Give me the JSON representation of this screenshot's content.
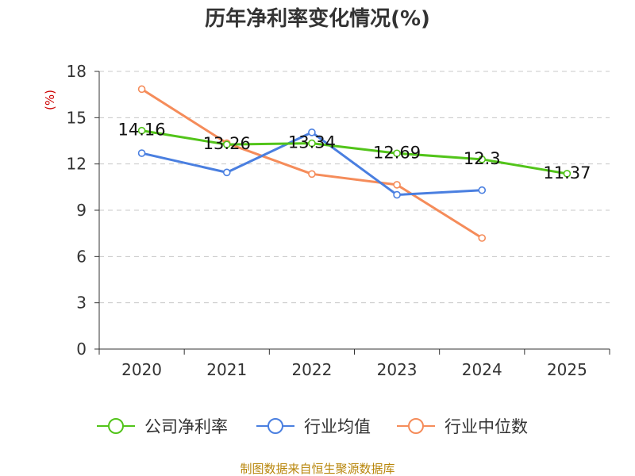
{
  "title": "历年净利率变化情况(%)",
  "source": "制图数据来自恒生聚源数据库",
  "chart_data": {
    "type": "line",
    "title": "历年净利率变化情况(%)",
    "xlabel": "",
    "ylabel": "(%)",
    "categories": [
      "2020",
      "2021",
      "2022",
      "2023",
      "2024",
      "2025"
    ],
    "ylim": [
      0,
      18
    ],
    "yticks": [
      0,
      3,
      6,
      9,
      12,
      15,
      18
    ],
    "grid": true,
    "legend_position": "bottom",
    "series": [
      {
        "name": "公司净利率",
        "color": "#52c41a",
        "values": [
          14.16,
          13.26,
          13.34,
          12.69,
          12.3,
          11.37
        ],
        "labels": [
          "14.16",
          "13.26",
          "13.34",
          "12.69",
          "12.3",
          "11.37"
        ]
      },
      {
        "name": "行业均值",
        "color": "#4a7fe0",
        "values": [
          12.7,
          11.45,
          14.05,
          10.0,
          10.3,
          null
        ]
      },
      {
        "name": "行业中位数",
        "color": "#f58c5a",
        "values": [
          16.85,
          13.35,
          11.35,
          10.65,
          7.2,
          null
        ]
      }
    ]
  }
}
